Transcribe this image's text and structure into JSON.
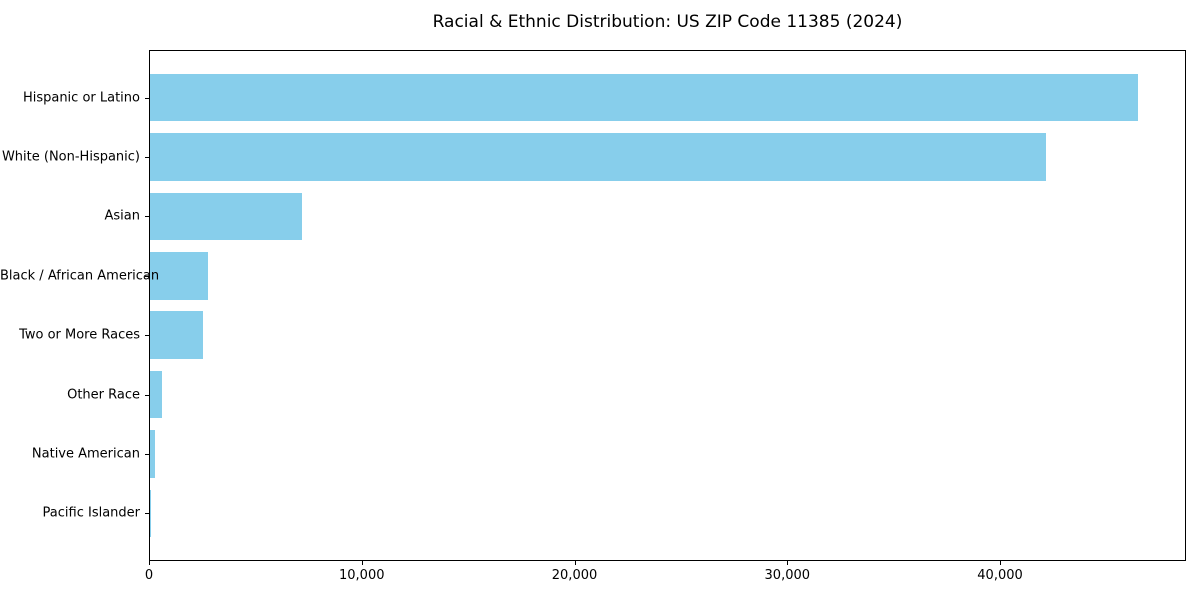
{
  "chart_data": {
    "type": "bar",
    "orientation": "horizontal",
    "title": "Racial & Ethnic Distribution: US ZIP Code 11385 (2024)",
    "categories": [
      "Hispanic or Latino",
      "White (Non-Hispanic)",
      "Asian",
      "Black / African American",
      "Two or More Races",
      "Other Race",
      "Native American",
      "Pacific Islander"
    ],
    "values": [
      46420,
      42090,
      7130,
      2740,
      2510,
      560,
      250,
      40
    ],
    "xlabel": "",
    "ylabel": "",
    "xlim": [
      0,
      48740
    ],
    "xticks": [
      0,
      10000,
      20000,
      30000,
      40000
    ],
    "xtick_labels": [
      "0",
      "10,000",
      "20,000",
      "30,000",
      "40,000"
    ],
    "bar_color": "#87CEEB",
    "axis_color": "#000000",
    "background_color": "#FFFFFF",
    "grid": false,
    "legend": "none"
  }
}
